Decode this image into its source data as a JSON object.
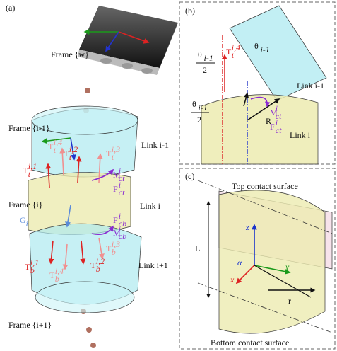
{
  "panel_a": {
    "label": "(a)",
    "frame_w": "Frame {w}",
    "frame_prev": "Frame {i-1}",
    "frame_i": "Frame {i}",
    "frame_next": "Frame {i+1}",
    "link_prev": "Link i-1",
    "link_i": "Link i",
    "link_next": "Link i+1",
    "gravity": {
      "base": "G",
      "sub": "i"
    },
    "top_tensions": [
      {
        "base": "T",
        "sub": "t",
        "sup": "i,1"
      },
      {
        "base": "T",
        "sub": "t",
        "sup": "i,2"
      },
      {
        "base": "T",
        "sub": "t",
        "sup": "i,3"
      },
      {
        "base": "T",
        "sub": "t",
        "sup": "i,4"
      }
    ],
    "bottom_tensions": [
      {
        "base": "T",
        "sub": "b",
        "sup": "i,1"
      },
      {
        "base": "T",
        "sub": "b",
        "sup": "i,2"
      },
      {
        "base": "T",
        "sub": "b",
        "sup": "i,3"
      },
      {
        "base": "T",
        "sub": "b",
        "sup": "i,4"
      }
    ],
    "moment_top": {
      "base": "M",
      "sup": "i",
      "sub": "ct"
    },
    "force_top": {
      "base": "F",
      "sup": "i",
      "sub": "ct"
    },
    "force_bottom": {
      "base": "F",
      "sup": "i",
      "sub": "cb"
    },
    "moment_bottom": {
      "base": "M",
      "sup": "i",
      "sub": "cb"
    }
  },
  "panel_b": {
    "label": "(b)",
    "angle": {
      "base": "θ",
      "sub": "i-1"
    },
    "half_angle_top": {
      "base": "θ",
      "sub": "i-1",
      "den": "2"
    },
    "half_angle_bottom": {
      "base": "θ",
      "sub": "i-1",
      "den": "2"
    },
    "tension": {
      "base": "T",
      "sub": "t",
      "sup": "i,4"
    },
    "moment": {
      "base": "M",
      "sup": "i",
      "sub": "ct"
    },
    "force": {
      "base": "F",
      "sup": "i",
      "sub": "ct"
    },
    "radius": "R",
    "link_prev": "Link i-1",
    "link_i": "Link i"
  },
  "panel_c": {
    "label": "(c)",
    "top_surface": "Top contact surface",
    "bottom_surface": "Bottom contact surface",
    "length": "L",
    "radius": "r",
    "axis_x": "x",
    "axis_y": "y",
    "axis_z": "z",
    "angle": "α"
  }
}
